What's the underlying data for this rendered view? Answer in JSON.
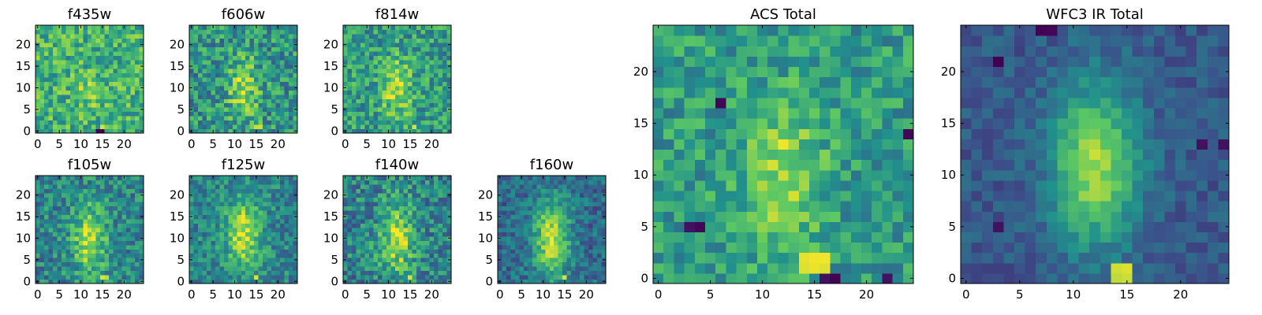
{
  "figure": {
    "colormap": "viridis",
    "stop_colors": [
      "#440154",
      "#3b528b",
      "#21918c",
      "#5ec962",
      "#fde725"
    ]
  },
  "chart_data": [
    {
      "type": "heatmap",
      "title": "f435w",
      "grid_size": 25,
      "xticks": [
        "0",
        "5",
        "10",
        "15",
        "20"
      ],
      "yticks": [
        "0",
        "5",
        "10",
        "15",
        "20"
      ],
      "xlim": [
        0,
        25
      ],
      "ylim": [
        0,
        25
      ],
      "source": {
        "cx": 12,
        "cy": 9,
        "sx": 2.2,
        "sy": 3,
        "amp": 0.15,
        "base": 0.64,
        "noise": 0.22,
        "seed": 11
      },
      "hotspots": [
        {
          "x": 14,
          "y": 0,
          "v": 0.0
        },
        {
          "x": 15,
          "y": 0,
          "v": 0.0
        },
        {
          "x": 15,
          "y": 1,
          "v": 0.95
        }
      ]
    },
    {
      "type": "heatmap",
      "title": "f606w",
      "grid_size": 25,
      "xticks": [
        "0",
        "5",
        "10",
        "15",
        "20"
      ],
      "yticks": [
        "0",
        "5",
        "10",
        "15",
        "20"
      ],
      "xlim": [
        0,
        25
      ],
      "ylim": [
        0,
        25
      ],
      "source": {
        "cx": 12,
        "cy": 10,
        "sx": 2.4,
        "sy": 5,
        "amp": 0.35,
        "base": 0.52,
        "noise": 0.24,
        "seed": 23
      },
      "hotspots": [
        {
          "x": 15,
          "y": 1,
          "v": 0.92
        },
        {
          "x": 16,
          "y": 1,
          "v": 0.92
        }
      ]
    },
    {
      "type": "heatmap",
      "title": "f814w",
      "grid_size": 25,
      "xticks": [
        "0",
        "5",
        "10",
        "15",
        "20"
      ],
      "yticks": [
        "0",
        "5",
        "10",
        "15",
        "20"
      ],
      "xlim": [
        0,
        25
      ],
      "ylim": [
        0,
        25
      ],
      "source": {
        "cx": 12,
        "cy": 10,
        "sx": 2.4,
        "sy": 5,
        "amp": 0.33,
        "base": 0.55,
        "noise": 0.22,
        "seed": 37
      },
      "hotspots": [
        {
          "x": 16,
          "y": 1,
          "v": 0.95
        }
      ]
    },
    {
      "type": "heatmap",
      "title": "f105w",
      "grid_size": 25,
      "xticks": [
        "0",
        "5",
        "10",
        "15",
        "20"
      ],
      "yticks": [
        "0",
        "5",
        "10",
        "15",
        "20"
      ],
      "xlim": [
        0,
        25
      ],
      "ylim": [
        0,
        25
      ],
      "source": {
        "cx": 12,
        "cy": 10,
        "sx": 2.8,
        "sy": 6,
        "amp": 0.42,
        "base": 0.45,
        "noise": 0.2,
        "seed": 41
      },
      "hotspots": [
        {
          "x": 15,
          "y": 1,
          "v": 0.95
        },
        {
          "x": 16,
          "y": 1,
          "v": 0.9
        }
      ]
    },
    {
      "type": "heatmap",
      "title": "f125w",
      "grid_size": 25,
      "xticks": [
        "0",
        "5",
        "10",
        "15",
        "20"
      ],
      "yticks": [
        "0",
        "5",
        "10",
        "15",
        "20"
      ],
      "xlim": [
        0,
        25
      ],
      "ylim": [
        0,
        25
      ],
      "source": {
        "cx": 12,
        "cy": 11,
        "sx": 2.8,
        "sy": 6,
        "amp": 0.45,
        "base": 0.45,
        "noise": 0.18,
        "seed": 53
      },
      "hotspots": [
        {
          "x": 15,
          "y": 1,
          "v": 0.95
        }
      ]
    },
    {
      "type": "heatmap",
      "title": "f140w",
      "grid_size": 25,
      "xticks": [
        "0",
        "5",
        "10",
        "15",
        "20"
      ],
      "yticks": [
        "0",
        "5",
        "10",
        "15",
        "20"
      ],
      "xlim": [
        0,
        25
      ],
      "ylim": [
        0,
        25
      ],
      "source": {
        "cx": 12,
        "cy": 10,
        "sx": 2.8,
        "sy": 6,
        "amp": 0.42,
        "base": 0.45,
        "noise": 0.22,
        "seed": 67
      },
      "hotspots": [
        {
          "x": 15,
          "y": 1,
          "v": 0.95
        }
      ]
    },
    {
      "type": "heatmap",
      "title": "f160w",
      "grid_size": 25,
      "xticks": [
        "0",
        "5",
        "10",
        "15",
        "20"
      ],
      "yticks": [
        "0",
        "5",
        "10",
        "15",
        "20"
      ],
      "xlim": [
        0,
        25
      ],
      "ylim": [
        0,
        25
      ],
      "source": {
        "cx": 12,
        "cy": 10,
        "sx": 3,
        "sy": 6.5,
        "amp": 0.55,
        "base": 0.35,
        "noise": 0.16,
        "seed": 71
      },
      "hotspots": [
        {
          "x": 15,
          "y": 1,
          "v": 0.95
        }
      ]
    },
    {
      "type": "heatmap",
      "title": "ACS Total",
      "grid_size": 25,
      "xticks": [
        "0",
        "5",
        "10",
        "15",
        "20"
      ],
      "yticks": [
        "0",
        "5",
        "10",
        "15",
        "20"
      ],
      "xlim": [
        0,
        25
      ],
      "ylim": [
        0,
        25
      ],
      "source": {
        "cx": 12,
        "cy": 10,
        "sx": 2.5,
        "sy": 5,
        "amp": 0.32,
        "base": 0.55,
        "noise": 0.18,
        "seed": 83
      },
      "hotspots": [
        {
          "x": 14,
          "y": 2,
          "v": 0.96
        },
        {
          "x": 15,
          "y": 2,
          "v": 0.98
        },
        {
          "x": 16,
          "y": 2,
          "v": 0.98
        },
        {
          "x": 14,
          "y": 1,
          "v": 0.95
        },
        {
          "x": 15,
          "y": 1,
          "v": 0.97
        },
        {
          "x": 16,
          "y": 1,
          "v": 0.95
        },
        {
          "x": 16,
          "y": 0,
          "v": 0.05
        },
        {
          "x": 17,
          "y": 0,
          "v": 0.0
        },
        {
          "x": 4,
          "y": 5,
          "v": 0.02
        },
        {
          "x": 3,
          "y": 5,
          "v": 0.05
        },
        {
          "x": 22,
          "y": 0,
          "v": 0.05
        },
        {
          "x": 6,
          "y": 17,
          "v": 0.02
        },
        {
          "x": 24,
          "y": 14,
          "v": 0.02
        }
      ]
    },
    {
      "type": "heatmap",
      "title": "WFC3 IR Total",
      "grid_size": 25,
      "xticks": [
        "0",
        "5",
        "10",
        "15",
        "20"
      ],
      "yticks": [
        "0",
        "5",
        "10",
        "15",
        "20"
      ],
      "xlim": [
        0,
        25
      ],
      "ylim": [
        0,
        25
      ],
      "source": {
        "cx": 12,
        "cy": 11,
        "sx": 2.8,
        "sy": 5.5,
        "amp": 0.58,
        "base": 0.28,
        "noise": 0.09,
        "seed": 97
      },
      "hotspots": [
        {
          "x": 14,
          "y": 1,
          "v": 0.93
        },
        {
          "x": 15,
          "y": 1,
          "v": 0.95
        },
        {
          "x": 14,
          "y": 0,
          "v": 0.9
        },
        {
          "x": 15,
          "y": 0,
          "v": 0.92
        },
        {
          "x": 7,
          "y": 24,
          "v": 0.0
        },
        {
          "x": 8,
          "y": 24,
          "v": 0.02
        },
        {
          "x": 3,
          "y": 21,
          "v": 0.0
        },
        {
          "x": 22,
          "y": 13,
          "v": 0.05
        },
        {
          "x": 24,
          "y": 13,
          "v": 0.05
        },
        {
          "x": 3,
          "y": 5,
          "v": 0.05
        }
      ]
    }
  ]
}
